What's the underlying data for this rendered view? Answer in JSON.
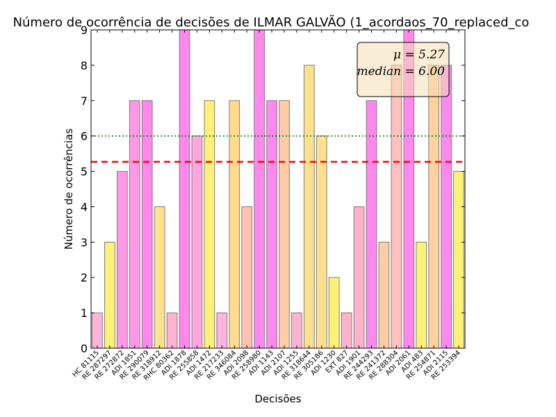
{
  "chart_data": {
    "type": "bar",
    "title": "Número de ocorrência de decisões de ILMAR GALVÃO (1_acordaos_70_replaced_co",
    "xlabel": "Decisões",
    "ylabel": "Número de ocorrências",
    "ylim": [
      0,
      9
    ],
    "yticks": [
      0,
      1,
      2,
      3,
      4,
      5,
      6,
      7,
      8,
      9
    ],
    "grid": false,
    "legend_position": "top-right",
    "categories": [
      "HC 81115",
      "RE 287297",
      "RE 272872",
      "ADI 1851",
      "RE 290079",
      "RE 318912",
      "RHC 80362",
      "ADI 1878",
      "RE 255858",
      "ADI 1472",
      "RE 217233",
      "RE 346084",
      "ADI 2098",
      "RE 258980",
      "ADI 1143",
      "ADI 2107",
      "ADI 1255",
      "RE 318644",
      "RE 305186",
      "ADI 1230",
      "EXT 827",
      "ADI 1901",
      "RE 244293",
      "RE 241372",
      "RE 288304",
      "ADI 2061",
      "ADI 483",
      "RE 254871",
      "ADI 2115",
      "RE 253394"
    ],
    "values": [
      1,
      3,
      5,
      7,
      7,
      4,
      1,
      9,
      6,
      7,
      1,
      7,
      4,
      9,
      7,
      7,
      1,
      8,
      6,
      2,
      1,
      4,
      7,
      3,
      8,
      9,
      3,
      8,
      8,
      5
    ],
    "colors": [
      "#ffb3dd",
      "#fff176",
      "#ff99e6",
      "#ff99e6",
      "#ff88ee",
      "#ffe08c",
      "#ffb3d0",
      "#ff88ee",
      "#ffa8e0",
      "#fff176",
      "#ffb3dd",
      "#ffdb8f",
      "#ffc2b0",
      "#ff88ee",
      "#ff88ee",
      "#ffcca6",
      "#ffb3d0",
      "#ffe08c",
      "#ffe08c",
      "#fff176",
      "#ffb3cc",
      "#ffb3cc",
      "#ff88ee",
      "#ffcca6",
      "#ffc0c0",
      "#ff88ee",
      "#fff176",
      "#ffd19e",
      "#ff88ee",
      "#fff176"
    ],
    "mean": 5.27,
    "median": 6.0,
    "mean_color": "#ff0000",
    "median_color": "#008000",
    "legend_mean_label": "μ = 5.27",
    "legend_median_label": "median = 6.00"
  }
}
